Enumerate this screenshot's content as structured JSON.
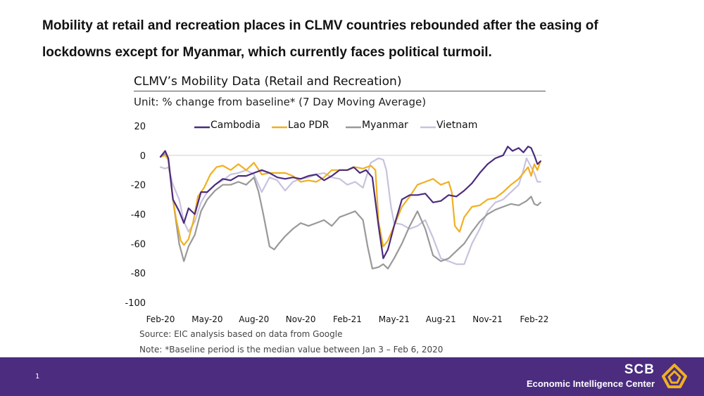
{
  "headline": {
    "line1": "Mobility at retail and recreation places in CLMV countries rebounded after the easing of",
    "line2": "lockdowns except for Myanmar, which currently faces political turmoil."
  },
  "chart_header": {
    "title": "CLMV’s Mobility Data (Retail and Recreation)",
    "unit": "Unit: % change from baseline* (7 Day Moving Average)"
  },
  "notes": {
    "source": "Source: EIC analysis based on data from Google",
    "note": "Note: *Baseline period is the median value between Jan 3 – Feb 6, 2020"
  },
  "footer": {
    "page_number": "1",
    "brand_name": "SCB",
    "brand_sub": "Economic Intelligence Center",
    "background": "#4b2c7f"
  },
  "chart_data": {
    "type": "line",
    "title": "CLMV’s Mobility Data (Retail and Recreation)",
    "ylabel": "% change from baseline",
    "xlabel": "",
    "ylim": [
      -100,
      20
    ],
    "yticks": [
      20,
      0,
      -20,
      -40,
      -60,
      -80,
      -100
    ],
    "xlim": [
      0,
      24.5
    ],
    "xticks": [
      {
        "label": "Feb-20",
        "x": 0
      },
      {
        "label": "May-20",
        "x": 3
      },
      {
        "label": "Aug-20",
        "x": 6
      },
      {
        "label": "Nov-20",
        "x": 9
      },
      {
        "label": "Feb-21",
        "x": 12
      },
      {
        "label": "May-21",
        "x": 15
      },
      {
        "label": "Aug-21",
        "x": 18
      },
      {
        "label": "Nov-21",
        "x": 21
      },
      {
        "label": "Feb-22",
        "x": 24
      }
    ],
    "legend_position": "top",
    "series": [
      {
        "name": "Cambodia",
        "color": "#4b2c7f",
        "points": [
          [
            0,
            -1
          ],
          [
            0.3,
            3
          ],
          [
            0.5,
            -2
          ],
          [
            0.8,
            -30
          ],
          [
            1.2,
            -38
          ],
          [
            1.5,
            -46
          ],
          [
            1.8,
            -36
          ],
          [
            2.2,
            -40
          ],
          [
            2.6,
            -25
          ],
          [
            3,
            -25
          ],
          [
            3.5,
            -20
          ],
          [
            4,
            -16
          ],
          [
            4.5,
            -17
          ],
          [
            5,
            -14
          ],
          [
            5.5,
            -14
          ],
          [
            6,
            -12
          ],
          [
            6.5,
            -10
          ],
          [
            7,
            -12
          ],
          [
            7.5,
            -15
          ],
          [
            8,
            -16
          ],
          [
            8.5,
            -15
          ],
          [
            9,
            -16
          ],
          [
            9.5,
            -14
          ],
          [
            10,
            -13
          ],
          [
            10.5,
            -17
          ],
          [
            11,
            -14
          ],
          [
            11.5,
            -10
          ],
          [
            12,
            -10
          ],
          [
            12.4,
            -8
          ],
          [
            12.8,
            -12
          ],
          [
            13.2,
            -10
          ],
          [
            13.6,
            -15
          ],
          [
            14,
            -48
          ],
          [
            14.3,
            -70
          ],
          [
            14.6,
            -64
          ],
          [
            15,
            -48
          ],
          [
            15.5,
            -30
          ],
          [
            16,
            -27
          ],
          [
            16.5,
            -27
          ],
          [
            17,
            -26
          ],
          [
            17.5,
            -32
          ],
          [
            18,
            -31
          ],
          [
            18.5,
            -27
          ],
          [
            19,
            -28
          ],
          [
            19.5,
            -24
          ],
          [
            20,
            -19
          ],
          [
            20.5,
            -12
          ],
          [
            21,
            -6
          ],
          [
            21.5,
            -2
          ],
          [
            22,
            0
          ],
          [
            22.3,
            6
          ],
          [
            22.6,
            3
          ],
          [
            23,
            5
          ],
          [
            23.3,
            2
          ],
          [
            23.6,
            6
          ],
          [
            23.8,
            5
          ],
          [
            24,
            0
          ],
          [
            24.2,
            -6
          ],
          [
            24.4,
            -4
          ]
        ]
      },
      {
        "name": "Lao PDR",
        "color": "#f0b020",
        "points": [
          [
            0,
            -1
          ],
          [
            0.3,
            0
          ],
          [
            0.5,
            -3
          ],
          [
            0.8,
            -30
          ],
          [
            1,
            -43
          ],
          [
            1.3,
            -58
          ],
          [
            1.5,
            -61
          ],
          [
            1.8,
            -57
          ],
          [
            2.1,
            -45
          ],
          [
            2.4,
            -28
          ],
          [
            2.8,
            -22
          ],
          [
            3.2,
            -13
          ],
          [
            3.6,
            -8
          ],
          [
            4,
            -7
          ],
          [
            4.5,
            -10
          ],
          [
            5,
            -6
          ],
          [
            5.5,
            -10
          ],
          [
            6,
            -5
          ],
          [
            6.5,
            -13
          ],
          [
            7,
            -12
          ],
          [
            7.5,
            -12
          ],
          [
            8,
            -12
          ],
          [
            8.5,
            -14
          ],
          [
            9,
            -18
          ],
          [
            9.5,
            -17
          ],
          [
            10,
            -18
          ],
          [
            10.5,
            -15
          ],
          [
            11,
            -10
          ],
          [
            11.5,
            -10
          ],
          [
            12,
            -10
          ],
          [
            12.5,
            -8
          ],
          [
            13,
            -9
          ],
          [
            13.5,
            -7
          ],
          [
            13.8,
            -10
          ],
          [
            14,
            -45
          ],
          [
            14.3,
            -62
          ],
          [
            14.6,
            -58
          ],
          [
            15,
            -48
          ],
          [
            15.5,
            -35
          ],
          [
            16,
            -28
          ],
          [
            16.5,
            -20
          ],
          [
            17,
            -18
          ],
          [
            17.5,
            -16
          ],
          [
            18,
            -20
          ],
          [
            18.5,
            -18
          ],
          [
            18.7,
            -25
          ],
          [
            18.9,
            -48
          ],
          [
            19.2,
            -52
          ],
          [
            19.5,
            -42
          ],
          [
            20,
            -35
          ],
          [
            20.5,
            -34
          ],
          [
            21,
            -30
          ],
          [
            21.5,
            -29
          ],
          [
            22,
            -25
          ],
          [
            22.5,
            -20
          ],
          [
            23,
            -16
          ],
          [
            23.3,
            -12
          ],
          [
            23.6,
            -8
          ],
          [
            23.8,
            -14
          ],
          [
            24,
            -6
          ],
          [
            24.2,
            -10
          ],
          [
            24.4,
            -4
          ]
        ]
      },
      {
        "name": "Myanmar",
        "color": "#999999",
        "points": [
          [
            0,
            -1
          ],
          [
            0.3,
            1
          ],
          [
            0.5,
            -3
          ],
          [
            0.8,
            -30
          ],
          [
            1.2,
            -60
          ],
          [
            1.5,
            -72
          ],
          [
            1.8,
            -62
          ],
          [
            2.2,
            -54
          ],
          [
            2.6,
            -38
          ],
          [
            3,
            -30
          ],
          [
            3.5,
            -24
          ],
          [
            4,
            -20
          ],
          [
            4.5,
            -20
          ],
          [
            5,
            -18
          ],
          [
            5.5,
            -20
          ],
          [
            6,
            -15
          ],
          [
            6.3,
            -25
          ],
          [
            6.6,
            -40
          ],
          [
            7,
            -62
          ],
          [
            7.3,
            -64
          ],
          [
            7.6,
            -60
          ],
          [
            8,
            -55
          ],
          [
            8.5,
            -50
          ],
          [
            9,
            -46
          ],
          [
            9.5,
            -48
          ],
          [
            10,
            -46
          ],
          [
            10.5,
            -44
          ],
          [
            11,
            -48
          ],
          [
            11.5,
            -42
          ],
          [
            12,
            -40
          ],
          [
            12.5,
            -38
          ],
          [
            13,
            -44
          ],
          [
            13.3,
            -62
          ],
          [
            13.6,
            -77
          ],
          [
            14,
            -76
          ],
          [
            14.3,
            -74
          ],
          [
            14.6,
            -77
          ],
          [
            15,
            -70
          ],
          [
            15.5,
            -60
          ],
          [
            16,
            -48
          ],
          [
            16.5,
            -38
          ],
          [
            17,
            -50
          ],
          [
            17.5,
            -68
          ],
          [
            18,
            -72
          ],
          [
            18.5,
            -70
          ],
          [
            19,
            -65
          ],
          [
            19.5,
            -60
          ],
          [
            20,
            -52
          ],
          [
            20.5,
            -45
          ],
          [
            21,
            -40
          ],
          [
            21.5,
            -37
          ],
          [
            22,
            -35
          ],
          [
            22.5,
            -33
          ],
          [
            23,
            -34
          ],
          [
            23.5,
            -31
          ],
          [
            23.8,
            -28
          ],
          [
            24,
            -33
          ],
          [
            24.2,
            -34
          ],
          [
            24.4,
            -32
          ]
        ]
      },
      {
        "name": "Vietnam",
        "color": "#c8c2df",
        "points": [
          [
            0,
            -8
          ],
          [
            0.3,
            -9
          ],
          [
            0.5,
            -8
          ],
          [
            0.8,
            -20
          ],
          [
            1.2,
            -30
          ],
          [
            1.5,
            -45
          ],
          [
            1.8,
            -52
          ],
          [
            2.2,
            -45
          ],
          [
            2.6,
            -32
          ],
          [
            3,
            -25
          ],
          [
            3.5,
            -20
          ],
          [
            4,
            -17
          ],
          [
            4.5,
            -13
          ],
          [
            5,
            -12
          ],
          [
            5.5,
            -10
          ],
          [
            6,
            -13
          ],
          [
            6.5,
            -25
          ],
          [
            7,
            -15
          ],
          [
            7.5,
            -17
          ],
          [
            8,
            -24
          ],
          [
            8.5,
            -18
          ],
          [
            9,
            -16
          ],
          [
            9.5,
            -15
          ],
          [
            10,
            -13
          ],
          [
            10.5,
            -12
          ],
          [
            11,
            -15
          ],
          [
            11.5,
            -16
          ],
          [
            12,
            -20
          ],
          [
            12.5,
            -18
          ],
          [
            13,
            -22
          ],
          [
            13.5,
            -5
          ],
          [
            14,
            -2
          ],
          [
            14.3,
            -3
          ],
          [
            14.5,
            -10
          ],
          [
            14.8,
            -35
          ],
          [
            15,
            -46
          ],
          [
            15.5,
            -47
          ],
          [
            16,
            -50
          ],
          [
            16.5,
            -48
          ],
          [
            17,
            -44
          ],
          [
            17.5,
            -56
          ],
          [
            18,
            -70
          ],
          [
            18.5,
            -72
          ],
          [
            19,
            -74
          ],
          [
            19.5,
            -74
          ],
          [
            20,
            -60
          ],
          [
            20.5,
            -50
          ],
          [
            21,
            -38
          ],
          [
            21.5,
            -32
          ],
          [
            22,
            -30
          ],
          [
            22.5,
            -25
          ],
          [
            23,
            -20
          ],
          [
            23.3,
            -10
          ],
          [
            23.5,
            -2
          ],
          [
            23.8,
            -8
          ],
          [
            24,
            -12
          ],
          [
            24.2,
            -18
          ],
          [
            24.4,
            -18
          ]
        ]
      }
    ]
  }
}
